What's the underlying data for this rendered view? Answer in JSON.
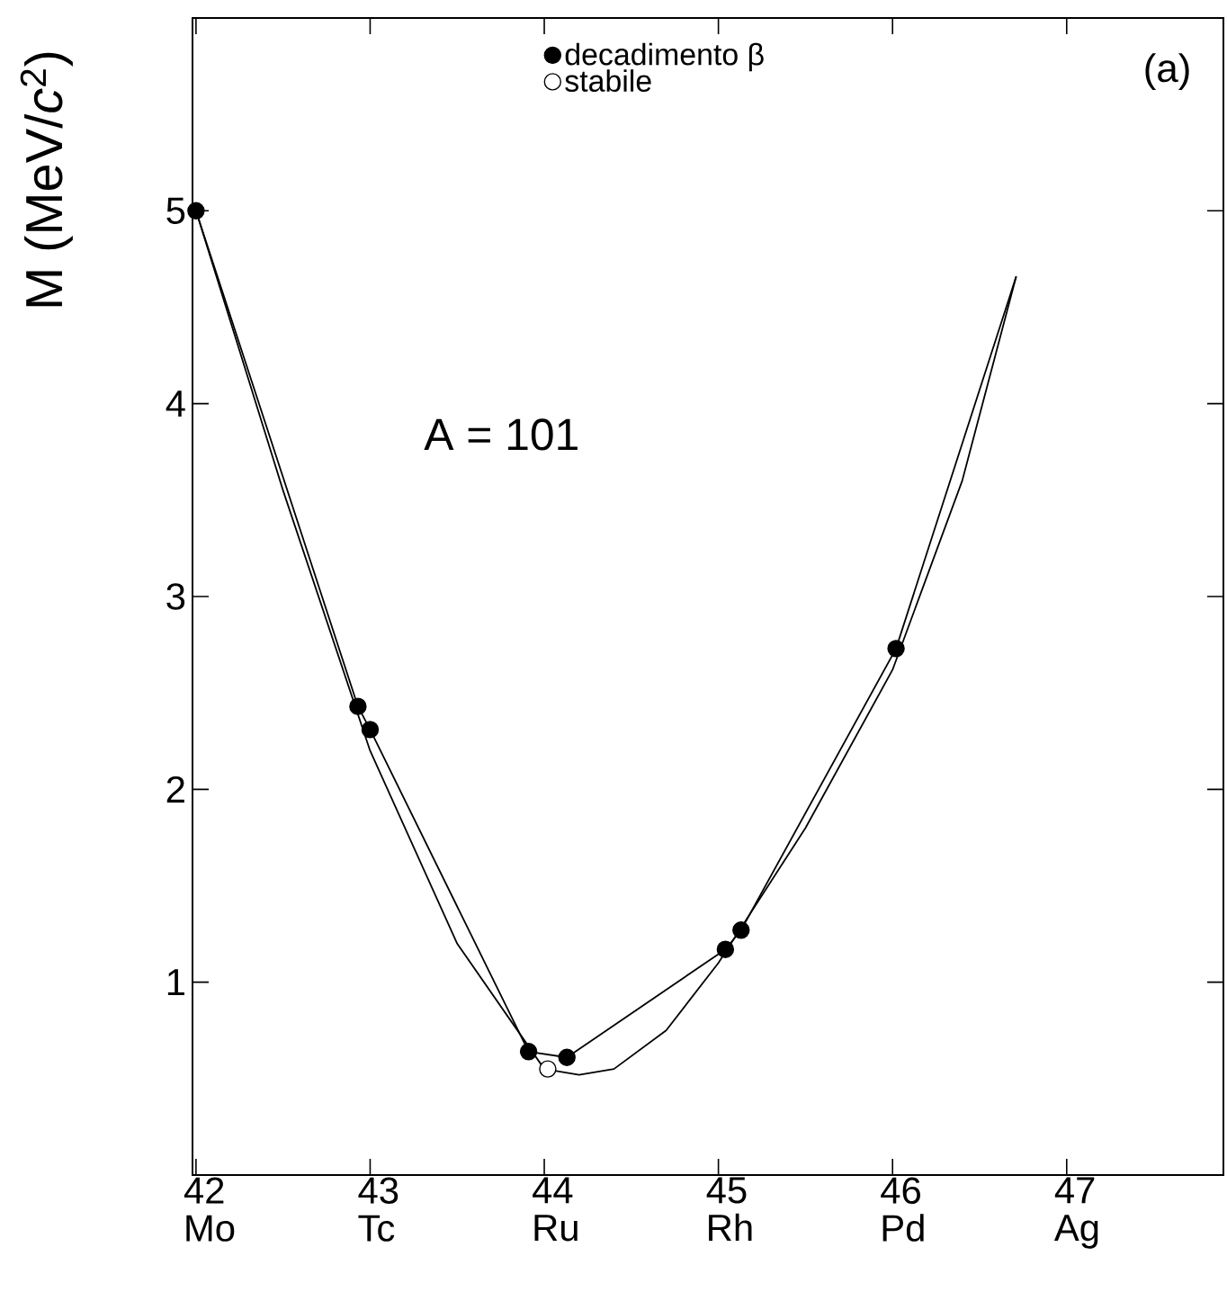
{
  "chart_data": {
    "type": "line",
    "ylabel": "M (MeV/*c*$^{2}$)",
    "xlim": [
      41.98,
      47.9
    ],
    "ylim": [
      0,
      6
    ],
    "xticks": [
      {
        "value": 42,
        "label": "42 Mo"
      },
      {
        "value": 43,
        "label": "43 Tc"
      },
      {
        "value": 44,
        "label": "44 Ru"
      },
      {
        "value": 45,
        "label": "45 Rh"
      },
      {
        "value": 46,
        "label": "46 Pd"
      },
      {
        "value": 47,
        "label": "47 Ag"
      }
    ],
    "yticks": [
      1,
      2,
      3,
      4,
      5
    ],
    "grid": false,
    "legend": "top",
    "annotations": [
      "A = 101",
      "(a)"
    ],
    "series": [
      {
        "color": "#000000",
        "marker": "none",
        "x": [
          42,
          42.93,
          43.0,
          43.91,
          44.13,
          45.04,
          45.13,
          46.02,
          46.71
        ],
        "values": [
          5.0,
          2.43,
          2.31,
          0.64,
          0.61,
          1.17,
          1.27,
          2.73,
          4.66
        ]
      },
      {
        "color": "#000000",
        "marker": "none",
        "x": [
          42,
          42.5,
          43.0,
          43.5,
          44.0,
          44.2,
          44.4,
          44.7,
          45.0,
          45.5,
          46.0,
          46.4,
          46.71
        ],
        "values": [
          5.0,
          3.55,
          2.2,
          1.2,
          0.55,
          0.52,
          0.55,
          0.75,
          1.1,
          1.8,
          2.62,
          3.6,
          4.66
        ]
      },
      {
        "type": "scatter",
        "name": "decadimento β",
        "color": "#000000",
        "marker": "circle",
        "x": [
          42,
          42.93,
          43.0,
          43.91,
          44.13,
          45.04,
          45.13,
          46.02
        ],
        "values": [
          5.0,
          2.43,
          2.31,
          0.64,
          0.61,
          1.17,
          1.27,
          2.73
        ]
      },
      {
        "type": "scatter",
        "name": "stabile",
        "color": "#ffffff",
        "marker": "circle",
        "x": [
          44.02
        ],
        "values": [
          0.55
        ]
      }
    ]
  }
}
